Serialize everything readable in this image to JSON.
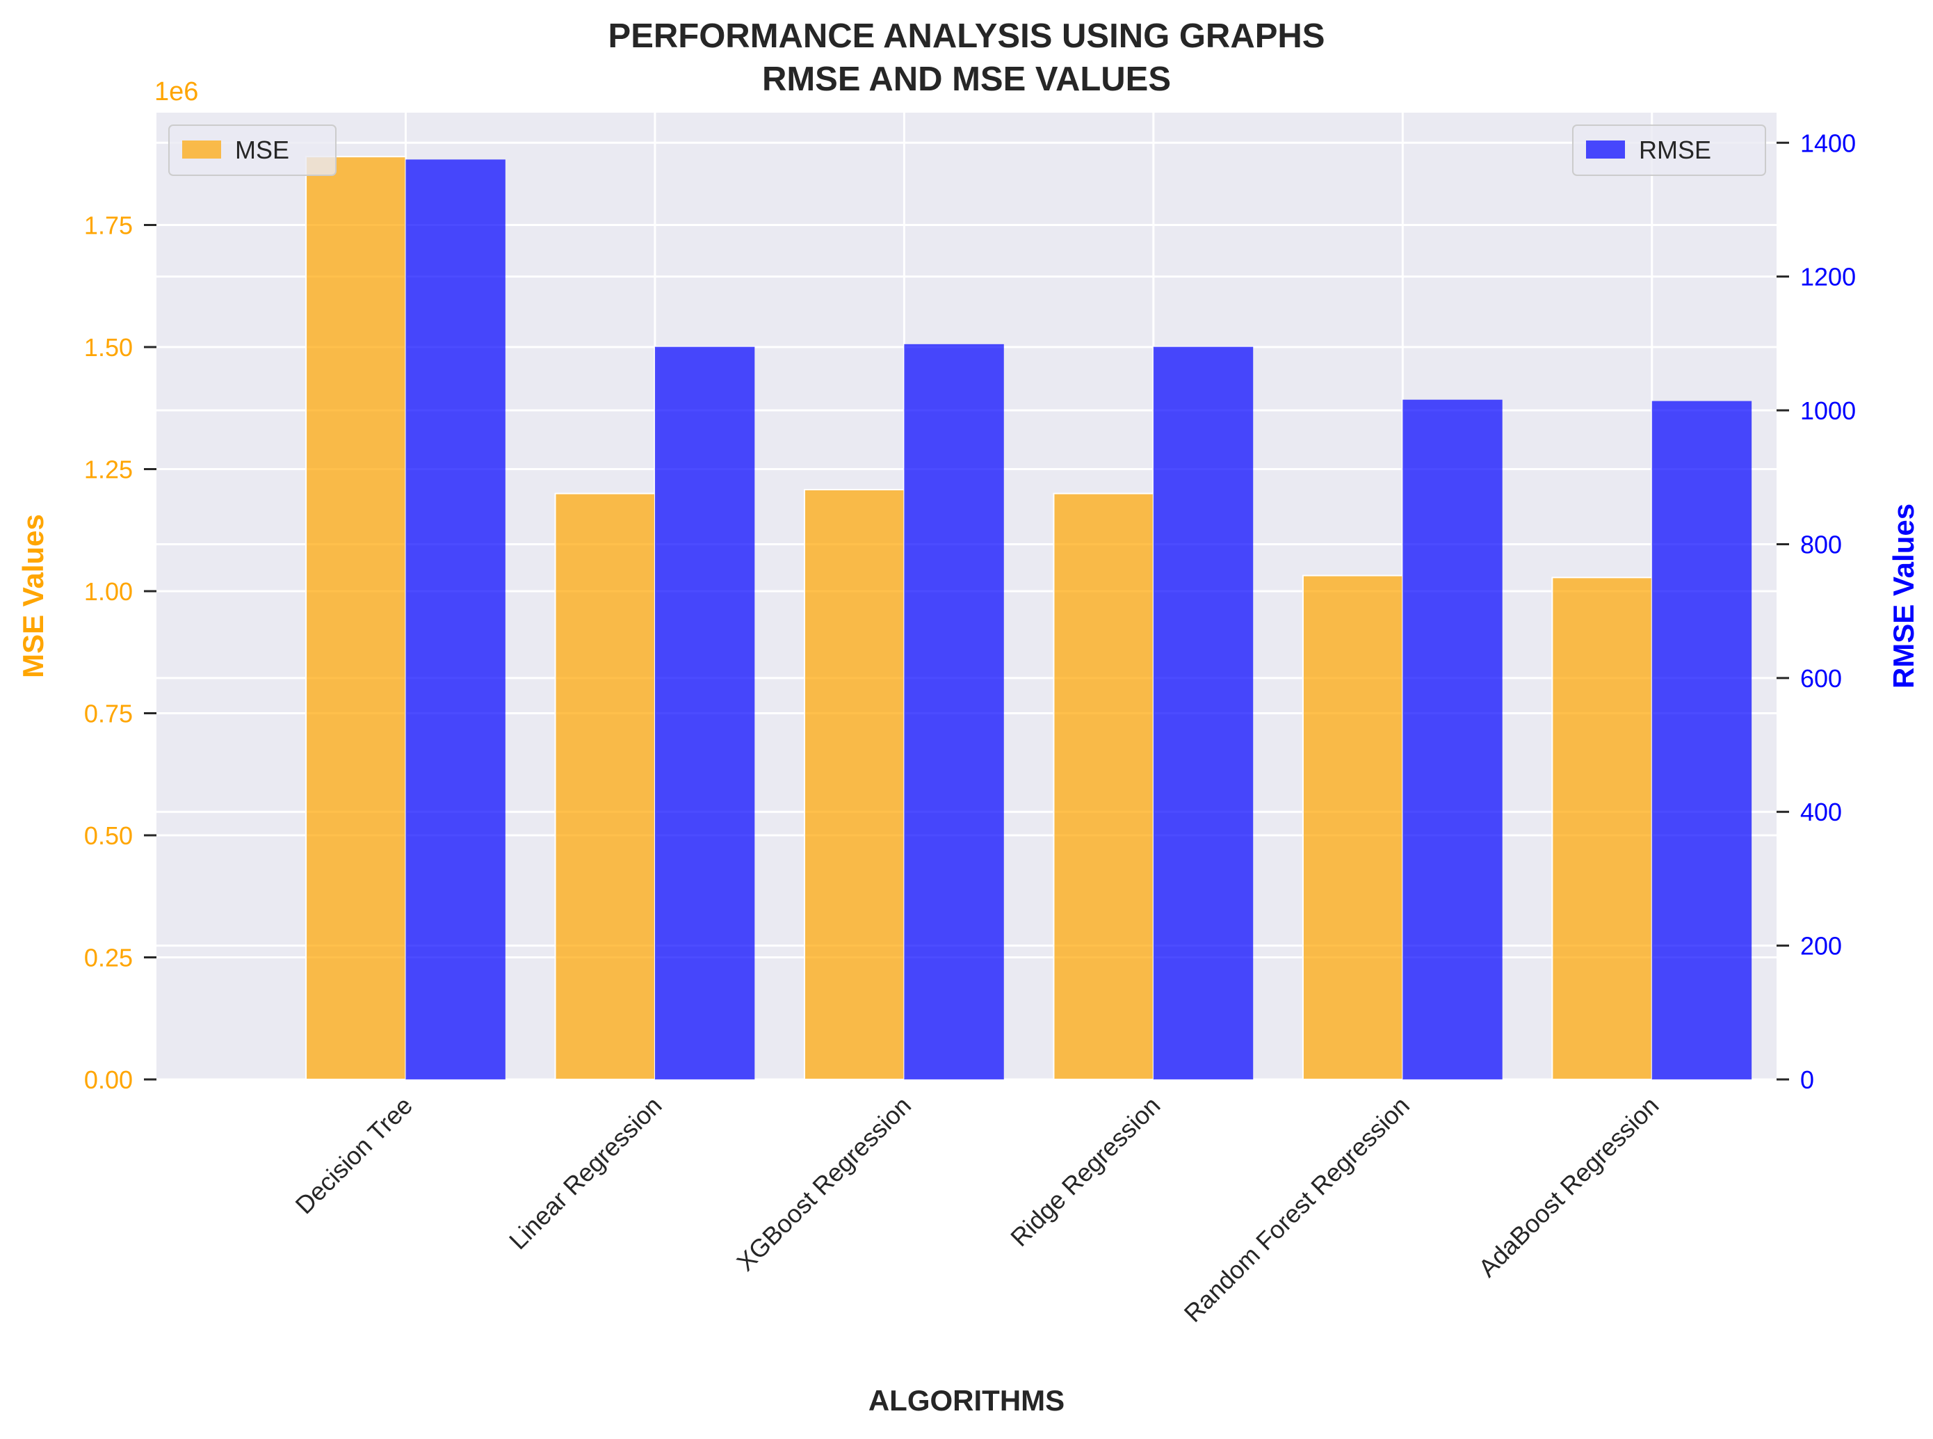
{
  "chart_data": {
    "type": "bar",
    "title_line1": "PERFORMANCE ANALYSIS USING GRAPHS",
    "title_line2": "RMSE AND MSE VALUES",
    "xlabel": "ALGORITHMS",
    "ylabel_left": "MSE Values",
    "ylabel_right": "RMSE Values",
    "left_axis_multiplier": "1e6",
    "categories": [
      "Decision Tree",
      "Linear Regression",
      "XGBoost Regression",
      "Ridge Regression",
      "Random Forest Regression",
      "AdaBoost Regression"
    ],
    "series": [
      {
        "name": "MSE",
        "axis": "left",
        "color": "#ffa500",
        "values": [
          1890000,
          1200000,
          1208000,
          1200000,
          1032000,
          1028000
        ]
      },
      {
        "name": "RMSE",
        "axis": "right",
        "color": "#0000ff",
        "values": [
          1375,
          1095,
          1099,
          1095,
          1016,
          1014
        ]
      }
    ],
    "ylim_left": [
      0,
      1980000
    ],
    "ylim_right": [
      0,
      1445
    ],
    "yticks_left": [
      "0.00",
      "0.25",
      "0.50",
      "0.75",
      "1.00",
      "1.25",
      "1.50",
      "1.75"
    ],
    "yticks_right": [
      "0",
      "200",
      "400",
      "600",
      "800",
      "1000",
      "1200",
      "1400"
    ],
    "legend_left": "top-left",
    "legend_right": "top-right",
    "grid": true,
    "colors": {
      "plot_background": "#eaeaf2",
      "grid": "#ffffff",
      "mse_axis": "#ffa500",
      "rmse_axis": "#0000ff",
      "text": "#262626"
    }
  }
}
